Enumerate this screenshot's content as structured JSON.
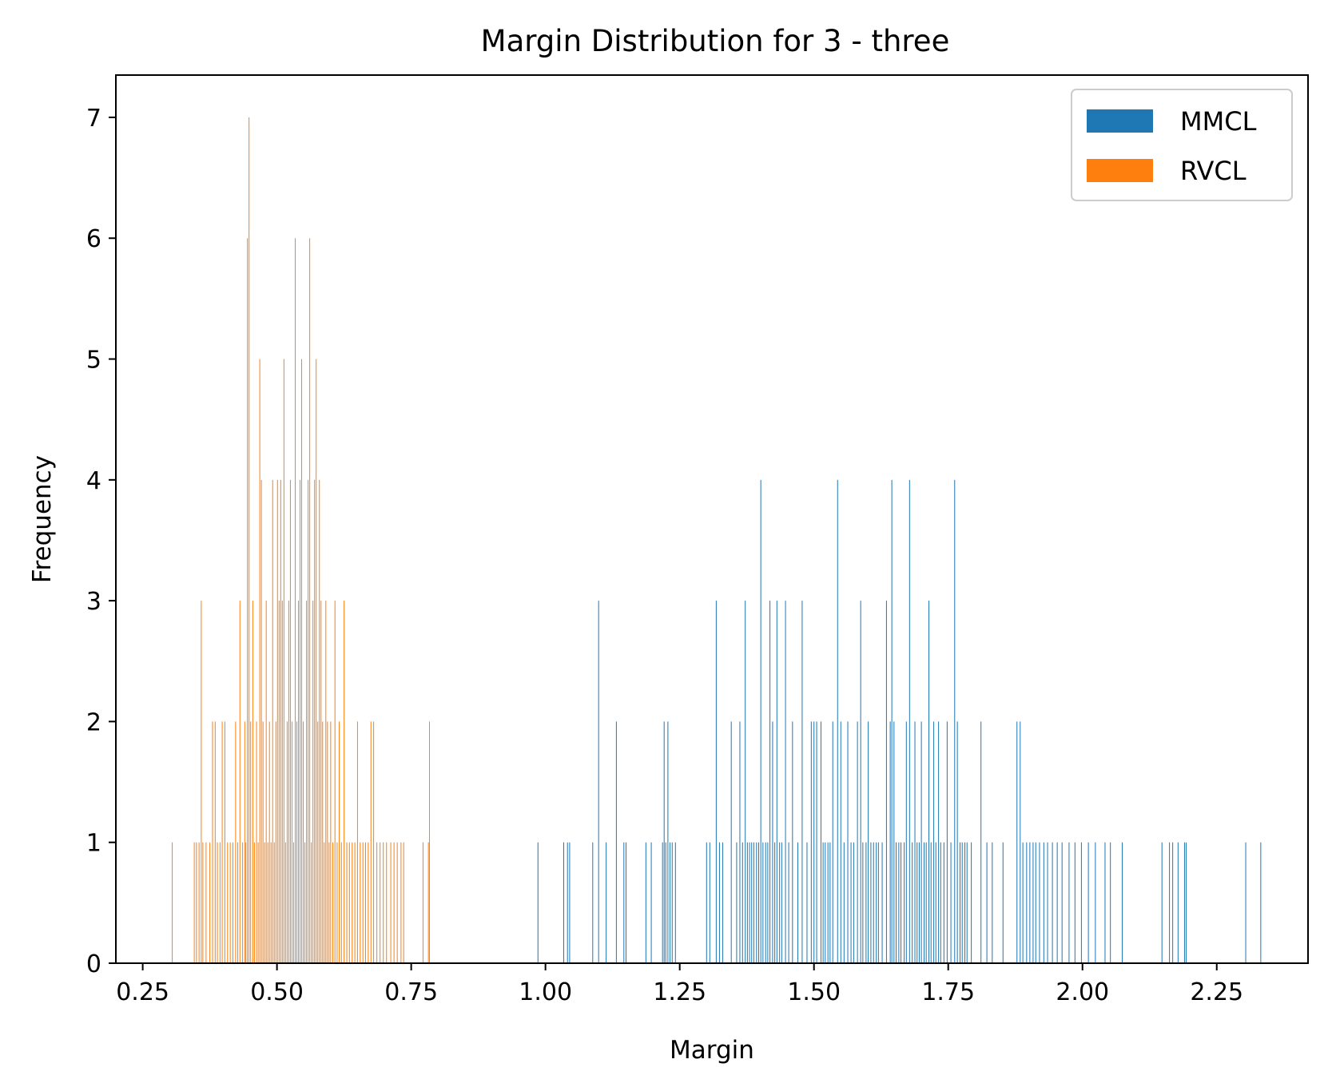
{
  "chart_data": {
    "type": "bar",
    "title": "Margin Distribution for 3 - three",
    "xlabel": "Margin",
    "ylabel": "Frequency",
    "xlim": [
      0.2,
      2.42
    ],
    "ylim": [
      0,
      7.35
    ],
    "xticks": [
      0.25,
      0.5,
      0.75,
      1.0,
      1.25,
      1.5,
      1.75,
      2.0,
      2.25
    ],
    "xtick_labels": [
      "0.25",
      "0.50",
      "0.75",
      "1.00",
      "1.25",
      "1.50",
      "1.75",
      "2.00",
      "2.25"
    ],
    "yticks": [
      0,
      1,
      2,
      3,
      4,
      5,
      6,
      7
    ],
    "ytick_labels": [
      "0",
      "1",
      "2",
      "3",
      "4",
      "5",
      "6",
      "7"
    ],
    "grid": false,
    "legend_position": "top-right",
    "bar_width": 0.0011,
    "series": [
      {
        "name": "MMCL",
        "color": "#1f77b4",
        "x": [
          0.986,
          1.034,
          1.041,
          1.045,
          1.088,
          1.099,
          1.113,
          1.132,
          1.146,
          1.15,
          1.187,
          1.197,
          1.218,
          1.221,
          1.224,
          1.228,
          1.232,
          1.236,
          1.242,
          1.3,
          1.306,
          1.318,
          1.324,
          1.33,
          1.346,
          1.356,
          1.362,
          1.367,
          1.372,
          1.376,
          1.38,
          1.384,
          1.388,
          1.393,
          1.397,
          1.401,
          1.405,
          1.41,
          1.414,
          1.418,
          1.423,
          1.427,
          1.431,
          1.436,
          1.44,
          1.447,
          1.453,
          1.46,
          1.47,
          1.478,
          1.487,
          1.495,
          1.5,
          1.505,
          1.513,
          1.517,
          1.521,
          1.526,
          1.53,
          1.535,
          1.544,
          1.55,
          1.556,
          1.563,
          1.569,
          1.574,
          1.581,
          1.587,
          1.591,
          1.597,
          1.601,
          1.606,
          1.611,
          1.616,
          1.62,
          1.627,
          1.635,
          1.642,
          1.645,
          1.649,
          1.653,
          1.658,
          1.662,
          1.668,
          1.672,
          1.678,
          1.683,
          1.688,
          1.692,
          1.696,
          1.7,
          1.705,
          1.709,
          1.714,
          1.718,
          1.723,
          1.727,
          1.732,
          1.736,
          1.742,
          1.748,
          1.755,
          1.762,
          1.767,
          1.772,
          1.776,
          1.781,
          1.785,
          1.793,
          1.811,
          1.822,
          1.832,
          1.852,
          1.878,
          1.884,
          1.889,
          1.896,
          1.902,
          1.908,
          1.913,
          1.92,
          1.928,
          1.935,
          1.944,
          1.953,
          1.962,
          1.975,
          1.986,
          1.998,
          2.011,
          2.024,
          2.042,
          2.052,
          2.074,
          2.148,
          2.162,
          2.168,
          2.178,
          2.19,
          2.193,
          2.304,
          2.332
        ],
        "values": [
          1,
          1,
          1,
          1,
          1,
          3,
          1,
          2,
          1,
          1,
          1,
          1,
          1,
          2,
          1,
          2,
          1,
          1,
          1,
          1,
          1,
          3,
          1,
          1,
          2,
          1,
          2,
          1,
          3,
          1,
          1,
          1,
          1,
          1,
          1,
          4,
          1,
          1,
          1,
          3,
          2,
          1,
          3,
          1,
          1,
          3,
          1,
          2,
          1,
          3,
          1,
          2,
          2,
          2,
          2,
          1,
          1,
          1,
          1,
          2,
          4,
          2,
          1,
          2,
          1,
          1,
          2,
          3,
          1,
          1,
          2,
          1,
          1,
          1,
          1,
          1,
          3,
          2,
          4,
          2,
          1,
          1,
          1,
          1,
          2,
          4,
          1,
          2,
          1,
          1,
          2,
          1,
          1,
          3,
          1,
          2,
          1,
          2,
          1,
          1,
          2,
          1,
          4,
          2,
          1,
          1,
          1,
          1,
          1,
          2,
          1,
          1,
          1,
          2,
          2,
          1,
          1,
          1,
          1,
          1,
          1,
          1,
          1,
          1,
          1,
          1,
          1,
          1,
          1,
          1,
          1,
          1,
          1,
          1,
          1,
          1,
          1,
          1,
          1,
          1,
          1,
          1
        ]
      },
      {
        "name": "RVCL",
        "color": "#ff7f0e",
        "x": [
          0.305,
          0.346,
          0.35,
          0.355,
          0.359,
          0.362,
          0.368,
          0.375,
          0.38,
          0.385,
          0.389,
          0.394,
          0.398,
          0.403,
          0.408,
          0.413,
          0.418,
          0.423,
          0.427,
          0.431,
          0.436,
          0.44,
          0.442,
          0.445,
          0.448,
          0.451,
          0.455,
          0.458,
          0.462,
          0.465,
          0.468,
          0.471,
          0.474,
          0.477,
          0.48,
          0.483,
          0.486,
          0.489,
          0.492,
          0.495,
          0.498,
          0.501,
          0.504,
          0.507,
          0.51,
          0.513,
          0.516,
          0.519,
          0.522,
          0.525,
          0.528,
          0.531,
          0.534,
          0.537,
          0.54,
          0.543,
          0.546,
          0.549,
          0.552,
          0.555,
          0.558,
          0.561,
          0.564,
          0.567,
          0.57,
          0.573,
          0.576,
          0.579,
          0.582,
          0.585,
          0.588,
          0.591,
          0.594,
          0.597,
          0.6,
          0.604,
          0.608,
          0.612,
          0.616,
          0.62,
          0.625,
          0.63,
          0.635,
          0.64,
          0.645,
          0.65,
          0.655,
          0.66,
          0.665,
          0.67,
          0.675,
          0.68,
          0.686,
          0.692,
          0.698,
          0.704,
          0.712,
          0.718,
          0.724,
          0.731,
          0.736,
          0.772,
          0.782,
          0.784
        ],
        "values": [
          1,
          1,
          1,
          1,
          3,
          1,
          1,
          1,
          2,
          2,
          1,
          1,
          2,
          2,
          1,
          1,
          1,
          2,
          1,
          3,
          1,
          2,
          1,
          6,
          7,
          2,
          3,
          1,
          2,
          1,
          5,
          4,
          2,
          1,
          3,
          1,
          2,
          1,
          4,
          1,
          2,
          4,
          3,
          4,
          3,
          5,
          1,
          2,
          3,
          4,
          2,
          1,
          6,
          2,
          3,
          4,
          5,
          2,
          1,
          3,
          4,
          6,
          1,
          3,
          4,
          5,
          2,
          4,
          3,
          2,
          1,
          3,
          2,
          1,
          2,
          1,
          3,
          1,
          2,
          1,
          3,
          1,
          1,
          1,
          1,
          2,
          1,
          1,
          1,
          1,
          2,
          2,
          1,
          1,
          1,
          1,
          1,
          1,
          1,
          1,
          1,
          1,
          1,
          2
        ]
      }
    ]
  }
}
